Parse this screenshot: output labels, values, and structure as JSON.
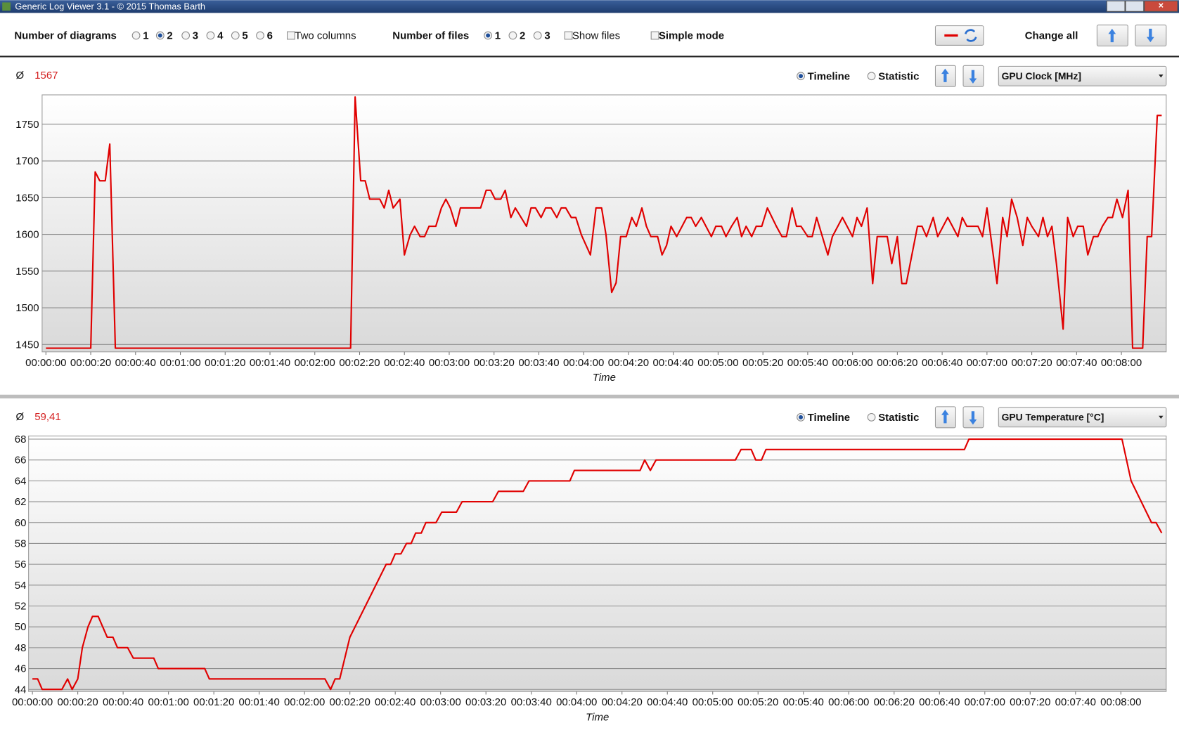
{
  "window": {
    "title": "Generic Log Viewer 3.1 - © 2015 Thomas Barth"
  },
  "toolbar": {
    "diagrams_label": "Number of diagrams",
    "diagrams_options": [
      {
        "label": "1",
        "checked": false
      },
      {
        "label": "2",
        "checked": true
      },
      {
        "label": "3",
        "checked": false
      },
      {
        "label": "4",
        "checked": false
      },
      {
        "label": "5",
        "checked": false
      },
      {
        "label": "6",
        "checked": false
      }
    ],
    "two_columns": {
      "label": "Two columns",
      "checked": false
    },
    "files_label": "Number of files",
    "files_options": [
      {
        "label": "1",
        "checked": true
      },
      {
        "label": "2",
        "checked": false
      },
      {
        "label": "3",
        "checked": false
      }
    ],
    "show_files": {
      "label": "Show files",
      "checked": false
    },
    "simple_mode": {
      "label": "Simple mode",
      "checked": false
    },
    "change_all": "Change all"
  },
  "panels": [
    {
      "average_symbol": "Ø",
      "average": "1567",
      "view_options": [
        {
          "label": "Timeline",
          "checked": true
        },
        {
          "label": "Statistic",
          "checked": false
        }
      ],
      "selector": "GPU Clock [MHz]"
    },
    {
      "average_symbol": "Ø",
      "average": "59,41",
      "view_options": [
        {
          "label": "Timeline",
          "checked": true
        },
        {
          "label": "Statistic",
          "checked": false
        }
      ],
      "selector": "GPU Temperature [°C]"
    }
  ],
  "chart_data": [
    {
      "type": "line",
      "color": "#e00000",
      "grid": true,
      "xlabel": "Time",
      "xlim": [
        -1.7,
        500
      ],
      "ylim": [
        1440,
        1790
      ],
      "yticks": [
        1450,
        1500,
        1550,
        1600,
        1650,
        1700,
        1750
      ],
      "xticks": [
        {
          "value": 0,
          "label": "00:00:00"
        },
        {
          "value": 20,
          "label": "00:00:20"
        },
        {
          "value": 40,
          "label": "00:00:40"
        },
        {
          "value": 60,
          "label": "00:01:00"
        },
        {
          "value": 80,
          "label": "00:01:20"
        },
        {
          "value": 100,
          "label": "00:01:40"
        },
        {
          "value": 120,
          "label": "00:02:00"
        },
        {
          "value": 140,
          "label": "00:02:20"
        },
        {
          "value": 160,
          "label": "00:02:40"
        },
        {
          "value": 180,
          "label": "00:03:00"
        },
        {
          "value": 200,
          "label": "00:03:20"
        },
        {
          "value": 220,
          "label": "00:03:40"
        },
        {
          "value": 240,
          "label": "00:04:00"
        },
        {
          "value": 260,
          "label": "00:04:20"
        },
        {
          "value": 280,
          "label": "00:04:40"
        },
        {
          "value": 300,
          "label": "00:05:00"
        },
        {
          "value": 320,
          "label": "00:05:20"
        },
        {
          "value": 340,
          "label": "00:05:40"
        },
        {
          "value": 360,
          "label": "00:06:00"
        },
        {
          "value": 380,
          "label": "00:06:20"
        },
        {
          "value": 400,
          "label": "00:06:40"
        },
        {
          "value": 420,
          "label": "00:07:00"
        },
        {
          "value": 440,
          "label": "00:07:20"
        },
        {
          "value": 460,
          "label": "00:07:40"
        },
        {
          "value": 480,
          "label": "00:08:00"
        }
      ],
      "x": [
        0,
        20,
        22,
        24,
        26.5,
        28.5,
        31,
        136,
        138,
        140.5,
        142.5,
        144.5,
        149,
        151,
        153,
        155,
        158,
        160,
        162.5,
        164.5,
        167,
        169,
        171,
        174,
        176.5,
        178.5,
        180.5,
        183,
        185,
        194,
        196.5,
        198.5,
        200.5,
        203,
        205,
        207.5,
        209.5,
        214.5,
        216.5,
        218.5,
        221,
        223,
        225.5,
        228,
        230,
        232,
        234.5,
        236.5,
        239,
        243,
        245.5,
        248,
        250,
        252.5,
        254.5,
        256.5,
        259,
        261.5,
        263.5,
        266,
        268,
        270,
        273,
        275,
        277,
        279,
        281.5,
        286,
        288,
        290,
        292.5,
        297,
        299,
        301.5,
        303.5,
        306,
        308.5,
        310.5,
        312.5,
        315,
        317,
        319.5,
        322,
        326,
        328.5,
        330.5,
        333,
        335,
        337,
        340,
        342,
        344,
        349,
        351,
        355.5,
        360,
        362,
        364,
        366.5,
        369,
        371,
        375.5,
        377.5,
        380,
        382,
        384,
        389,
        391,
        393,
        396,
        398,
        402.5,
        407,
        409,
        411,
        416,
        418,
        420,
        424.5,
        427,
        429,
        431,
        433.5,
        436,
        438,
        440,
        443,
        445,
        447,
        449,
        451,
        454,
        456,
        458.5,
        460.5,
        463,
        465,
        467.5,
        469.5,
        471.5,
        474,
        476,
        478,
        480.5,
        483,
        485,
        489.5,
        491.5,
        493.5,
        496,
        498
      ],
      "values": [
        1445,
        1445,
        1685,
        1673,
        1673,
        1723,
        1445,
        1445,
        1787,
        1673,
        1673,
        1648,
        1648,
        1636,
        1660,
        1636,
        1648,
        1572,
        1599,
        1611,
        1597,
        1597,
        1611,
        1611,
        1636,
        1648,
        1636,
        1611,
        1636,
        1636,
        1660,
        1660,
        1648,
        1648,
        1660,
        1623,
        1636,
        1611,
        1636,
        1636,
        1623,
        1636,
        1636,
        1623,
        1636,
        1636,
        1623,
        1623,
        1599,
        1572,
        1636,
        1636,
        1599,
        1521,
        1534,
        1597,
        1597,
        1623,
        1611,
        1636,
        1611,
        1597,
        1597,
        1572,
        1585,
        1611,
        1597,
        1623,
        1623,
        1611,
        1623,
        1597,
        1611,
        1611,
        1597,
        1611,
        1623,
        1597,
        1611,
        1597,
        1611,
        1611,
        1636,
        1611,
        1597,
        1597,
        1636,
        1611,
        1611,
        1597,
        1597,
        1623,
        1572,
        1597,
        1623,
        1597,
        1623,
        1611,
        1636,
        1533,
        1597,
        1597,
        1560,
        1597,
        1533,
        1533,
        1611,
        1611,
        1597,
        1623,
        1597,
        1623,
        1597,
        1623,
        1611,
        1611,
        1597,
        1636,
        1533,
        1623,
        1597,
        1648,
        1623,
        1585,
        1623,
        1611,
        1597,
        1623,
        1597,
        1611,
        1560,
        1471,
        1623,
        1597,
        1611,
        1611,
        1572,
        1597,
        1597,
        1611,
        1623,
        1623,
        1648,
        1623,
        1660,
        1445,
        1445,
        1597,
        1597,
        1762,
        1762
      ]
    },
    {
      "type": "line",
      "color": "#e00000",
      "grid": true,
      "xlabel": "Time",
      "xlim": [
        -1.7,
        500
      ],
      "ylim": [
        43.8,
        68.3
      ],
      "yticks": [
        44,
        46,
        48,
        50,
        52,
        54,
        56,
        58,
        60,
        62,
        64,
        66,
        68
      ],
      "xticks": [
        {
          "value": 0,
          "label": "00:00:00"
        },
        {
          "value": 20,
          "label": "00:00:20"
        },
        {
          "value": 40,
          "label": "00:00:40"
        },
        {
          "value": 60,
          "label": "00:01:00"
        },
        {
          "value": 80,
          "label": "00:01:20"
        },
        {
          "value": 100,
          "label": "00:01:40"
        },
        {
          "value": 120,
          "label": "00:02:00"
        },
        {
          "value": 140,
          "label": "00:02:20"
        },
        {
          "value": 160,
          "label": "00:02:40"
        },
        {
          "value": 180,
          "label": "00:03:00"
        },
        {
          "value": 200,
          "label": "00:03:20"
        },
        {
          "value": 220,
          "label": "00:03:40"
        },
        {
          "value": 240,
          "label": "00:04:00"
        },
        {
          "value": 260,
          "label": "00:04:20"
        },
        {
          "value": 280,
          "label": "00:04:40"
        },
        {
          "value": 300,
          "label": "00:05:00"
        },
        {
          "value": 320,
          "label": "00:05:20"
        },
        {
          "value": 340,
          "label": "00:05:40"
        },
        {
          "value": 360,
          "label": "00:06:00"
        },
        {
          "value": 380,
          "label": "00:06:20"
        },
        {
          "value": 400,
          "label": "00:06:40"
        },
        {
          "value": 420,
          "label": "00:07:00"
        },
        {
          "value": 440,
          "label": "00:07:20"
        },
        {
          "value": 460,
          "label": "00:07:40"
        },
        {
          "value": 480,
          "label": "00:08:00"
        }
      ],
      "x": [
        0,
        2.3,
        4.3,
        13,
        15.5,
        17.5,
        20,
        22,
        24.5,
        26.5,
        29,
        31,
        33,
        35.5,
        37.5,
        42,
        44.5,
        53.5,
        55.5,
        76,
        78,
        129,
        131.5,
        133.5,
        135.5,
        140,
        156,
        158,
        160,
        162.5,
        165,
        167,
        169,
        171.5,
        173.5,
        178,
        180.5,
        187,
        189.5,
        203,
        205.5,
        216.5,
        219,
        237,
        239,
        268,
        270,
        272.5,
        275,
        310,
        312.5,
        317,
        319,
        321.5,
        323.5,
        411,
        413,
        480.5,
        484.5,
        493.5,
        495.5,
        498
      ],
      "values": [
        45,
        45,
        44,
        44,
        45,
        44,
        45,
        48,
        50,
        51,
        51,
        50,
        49,
        49,
        48,
        48,
        47,
        47,
        46,
        46,
        45,
        45,
        44,
        45,
        45,
        49,
        56,
        56,
        57,
        57,
        58,
        58,
        59,
        59,
        60,
        60,
        61,
        61,
        62,
        62,
        63,
        63,
        64,
        64,
        65,
        65,
        66,
        65,
        66,
        66,
        67,
        67,
        66,
        66,
        67,
        67,
        68,
        68,
        64,
        60,
        60,
        59
      ]
    }
  ]
}
